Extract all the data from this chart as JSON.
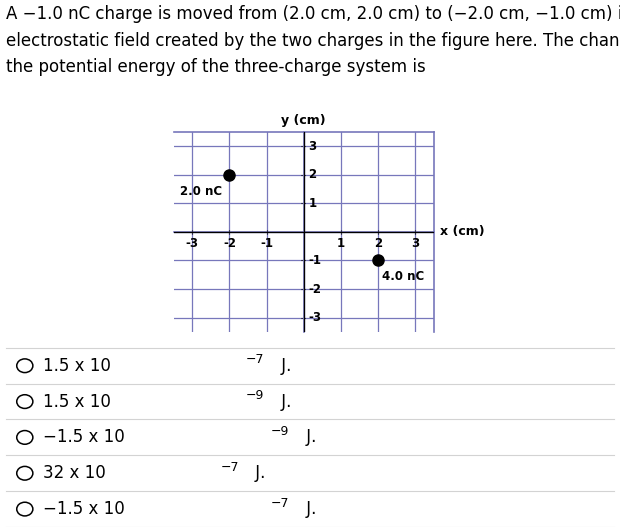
{
  "header_text": "A −1.0 nC charge is moved from (2.0 cm, 2.0 cm) to (−2.0 cm, −1.0 cm) in the\nelectrostatic field created by the two charges in the figure here. The change in\nthe potential energy of the three-charge system is",
  "plot_title_x": "x (cm)",
  "plot_title_y": "y (cm)",
  "xlim": [
    -3.5,
    3.5
  ],
  "ylim": [
    -3.5,
    3.5
  ],
  "xticks": [
    -3,
    -2,
    -1,
    1,
    2,
    3
  ],
  "yticks": [
    -3,
    -2,
    -1,
    1,
    2,
    3
  ],
  "charge1_x": -2.0,
  "charge1_y": 2.0,
  "charge1_label": "2.0 nC",
  "charge2_x": 2.0,
  "charge2_y": -1.0,
  "charge2_label": "4.0 nC",
  "dot_color": "black",
  "dot_size": 8,
  "grid_color": "#7777bb",
  "box_color": "#7777bb",
  "options": [
    "1.5 x 10",
    "1.5 x 10",
    "−1.5 x 10",
    "32 x 10",
    "−1.5 x 10"
  ],
  "option_exponents": [
    "−7",
    "−9",
    "−9",
    "−7",
    "−7"
  ],
  "option_fontsize": 12,
  "header_fontsize": 12,
  "fig_width": 6.2,
  "fig_height": 5.27,
  "fig_dpi": 100
}
